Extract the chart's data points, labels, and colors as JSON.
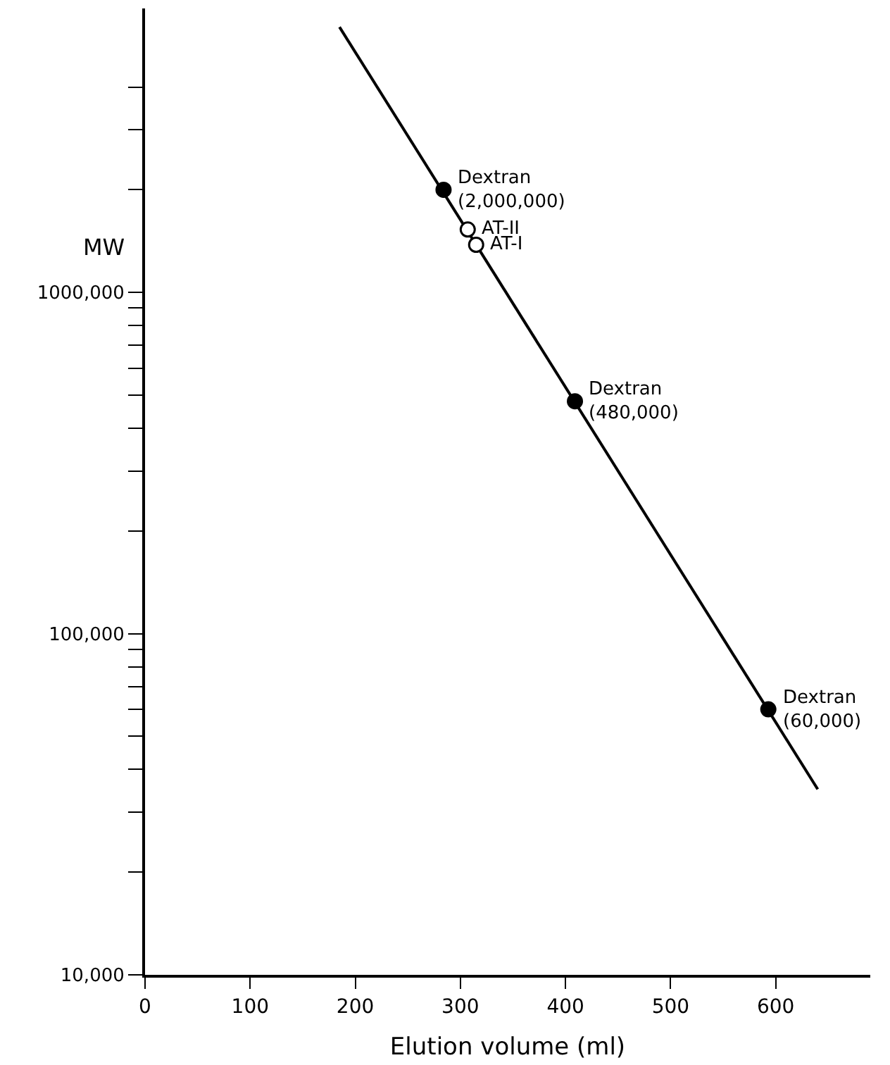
{
  "chart_data": {
    "type": "scatter",
    "xlabel": "Elution volume (ml)",
    "ylabel": "MW",
    "log": "y",
    "xlim": [
      0,
      690
    ],
    "xticks": [
      0,
      100,
      200,
      300,
      400,
      500,
      600
    ],
    "ylim": [
      10000,
      6800000
    ],
    "yticks": [
      {
        "value": 10000,
        "label": "10,000"
      },
      {
        "value": 20000,
        "label": null
      },
      {
        "value": 30000,
        "label": null
      },
      {
        "value": 40000,
        "label": null
      },
      {
        "value": 50000,
        "label": null
      },
      {
        "value": 60000,
        "label": null
      },
      {
        "value": 70000,
        "label": null
      },
      {
        "value": 80000,
        "label": null
      },
      {
        "value": 90000,
        "label": null
      },
      {
        "value": 100000,
        "label": "100,000"
      },
      {
        "value": 200000,
        "label": null
      },
      {
        "value": 300000,
        "label": null
      },
      {
        "value": 400000,
        "label": null
      },
      {
        "value": 500000,
        "label": null
      },
      {
        "value": 600000,
        "label": null
      },
      {
        "value": 700000,
        "label": null
      },
      {
        "value": 800000,
        "label": null
      },
      {
        "value": 900000,
        "label": null
      },
      {
        "value": 1000000,
        "label": "1000,000"
      },
      {
        "value": 2000000,
        "label": null
      },
      {
        "value": 3000000,
        "label": null
      },
      {
        "value": 4000000,
        "label": null
      }
    ],
    "series": [
      {
        "type": "line",
        "color": "#000000",
        "marker": "none",
        "line_style": "solid",
        "x": [
          185,
          640
        ],
        "values": [
          6000000,
          35000
        ]
      },
      {
        "color": "#000000",
        "marker": "circle",
        "x": [
          284,
          409,
          593
        ],
        "values": [
          2000000,
          480000,
          60000
        ]
      },
      {
        "color": "#ffffff",
        "marker": "circle",
        "x": [
          307,
          315
        ],
        "values": [
          1530000,
          1380000
        ]
      }
    ],
    "annotations": [
      {
        "text": "Dextran\n(2,000,000)",
        "x": 284,
        "y": 2000000
      },
      {
        "text": "AT-II",
        "x": 307,
        "y": 1530000
      },
      {
        "text": "AT-I",
        "x": 315,
        "y": 1380000
      },
      {
        "text": "Dextran\n(480,000)",
        "x": 409,
        "y": 480000
      },
      {
        "text": "Dextran\n(60,000)",
        "x": 593,
        "y": 60000
      }
    ]
  }
}
